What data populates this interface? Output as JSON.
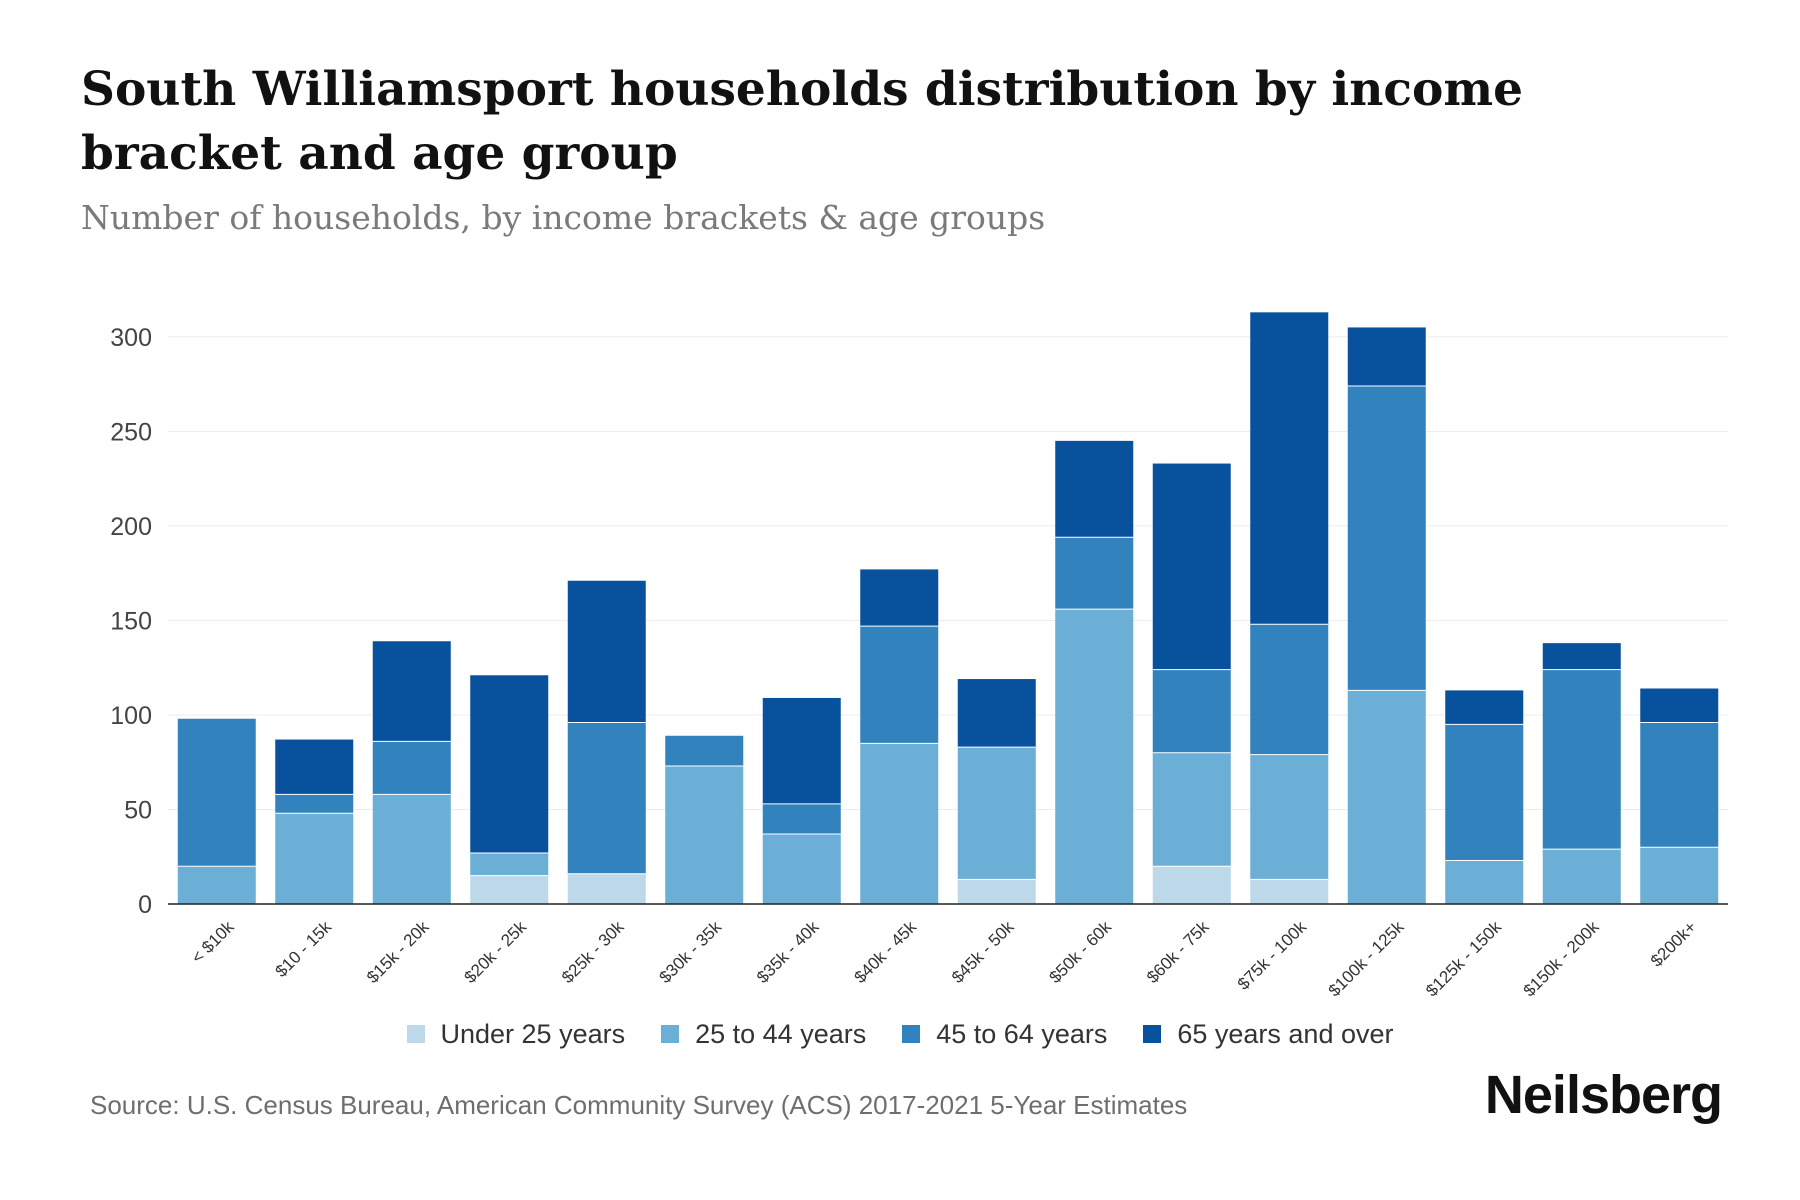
{
  "chart_data": {
    "type": "bar",
    "stacked": true,
    "title": "South Williamsport households distribution by income bracket and age group",
    "subtitle": "Number of households, by income brackets & age groups",
    "xlabel": "",
    "ylabel": "",
    "ylim": [
      0,
      310
    ],
    "yticks": [
      0,
      50,
      100,
      150,
      200,
      250,
      300
    ],
    "grid": true,
    "legend_position": "bottom-center",
    "categories": [
      "< $10k",
      "$10 - 15k",
      "$15k - 20k",
      "$20k - 25k",
      "$25k - 30k",
      "$30k - 35k",
      "$35k - 40k",
      "$40k - 45k",
      "$45k - 50k",
      "$50k - 60k",
      "$60k - 75k",
      "$75k - 100k",
      "$100k - 125k",
      "$125k - 150k",
      "$150k - 200k",
      "$200k+"
    ],
    "series": [
      {
        "name": "Under 25 years",
        "color": "#bcd8e9",
        "values": [
          0,
          0,
          0,
          15,
          16,
          0,
          0,
          0,
          13,
          0,
          20,
          13,
          0,
          0,
          0,
          0
        ]
      },
      {
        "name": "25 to 44 years",
        "color": "#6baed6",
        "values": [
          20,
          48,
          58,
          12,
          0,
          73,
          37,
          85,
          70,
          156,
          60,
          66,
          113,
          23,
          29,
          30
        ]
      },
      {
        "name": "45 to 64 years",
        "color": "#3182bd",
        "values": [
          78,
          10,
          28,
          0,
          80,
          16,
          16,
          62,
          0,
          38,
          44,
          69,
          161,
          72,
          95,
          66
        ]
      },
      {
        "name": "65 years and over",
        "color": "#08519c",
        "values": [
          0,
          29,
          53,
          94,
          75,
          0,
          56,
          30,
          36,
          51,
          109,
          165,
          31,
          18,
          14,
          18
        ]
      }
    ]
  },
  "footer": {
    "source": "Source: U.S. Census Bureau, American Community Survey (ACS) 2017-2021 5-Year Estimates",
    "brand": "Neilsberg"
  }
}
